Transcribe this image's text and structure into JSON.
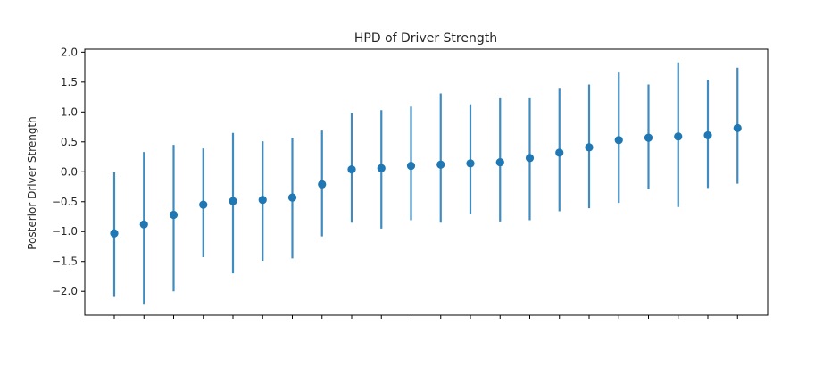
{
  "chart_data": {
    "type": "scatter",
    "title": "HPD of Driver Strength",
    "xlabel": "",
    "ylabel": "Posterior Driver Strength",
    "ylim": [
      -2.4,
      2.05
    ],
    "yticks": [
      -2.0,
      -1.5,
      -1.0,
      -0.5,
      0.0,
      0.5,
      1.0,
      1.5,
      2.0
    ],
    "ytick_labels": [
      "−2.0",
      "−1.5",
      "−1.0",
      "−0.5",
      "0.0",
      "0.5",
      "1.0",
      "1.5",
      "2.0"
    ],
    "x_tick_count": 22,
    "x_tick_labels_shown": false,
    "grid": false,
    "legend": "none",
    "color": "#1f77b4",
    "series": [
      {
        "means": [
          -1.03,
          -0.88,
          -0.72,
          -0.55,
          -0.49,
          -0.47,
          -0.43,
          -0.21,
          0.04,
          0.06,
          0.1,
          0.12,
          0.14,
          0.16,
          0.23,
          0.32,
          0.41,
          0.53,
          0.57,
          0.59,
          0.61,
          0.73
        ],
        "lower": [
          -2.08,
          -2.21,
          -2.0,
          -1.43,
          -1.7,
          -1.49,
          -1.45,
          -1.08,
          -0.85,
          -0.95,
          -0.81,
          -0.85,
          -0.71,
          -0.83,
          -0.81,
          -0.66,
          -0.61,
          -0.52,
          -0.29,
          -0.59,
          -0.27,
          -0.2
        ],
        "upper": [
          -0.01,
          0.33,
          0.45,
          0.39,
          0.65,
          0.51,
          0.57,
          0.69,
          0.99,
          1.03,
          1.09,
          1.31,
          1.13,
          1.23,
          1.23,
          1.39,
          1.46,
          1.66,
          1.46,
          1.83,
          1.54,
          1.74
        ]
      }
    ]
  }
}
